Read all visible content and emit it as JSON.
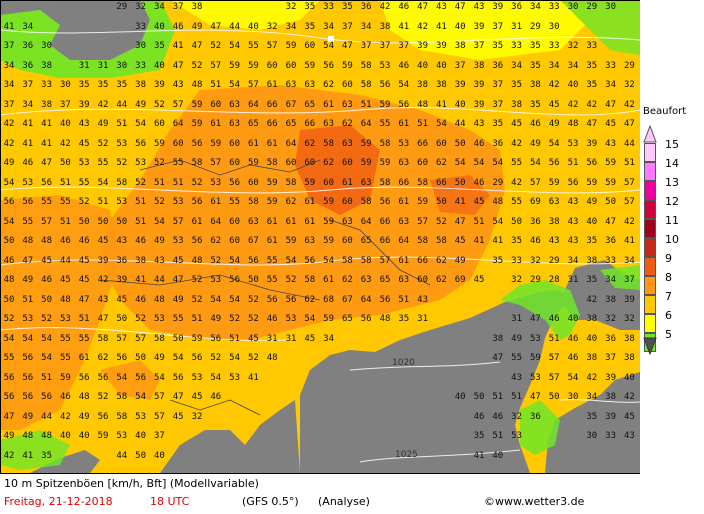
{
  "map": {
    "isobar_labels": [
      "1020",
      "1025"
    ],
    "land_color": "#808080",
    "grid_values": [
      [
        null,
        null,
        null,
        null,
        null,
        null,
        "29",
        "32",
        "34",
        "37",
        "38",
        null,
        null,
        null,
        null,
        "32",
        "35",
        "33",
        "35",
        "36",
        "42",
        "46",
        "47",
        "43",
        "47",
        "43",
        "39",
        "36",
        "34",
        "33",
        "30",
        "29",
        "30",
        null
      ],
      [
        "41",
        "34",
        null,
        null,
        null,
        null,
        null,
        "33",
        "40",
        "46",
        "49",
        "47",
        "44",
        "40",
        "32",
        "34",
        "35",
        "34",
        "37",
        "34",
        "38",
        "41",
        "42",
        "41",
        "40",
        "39",
        "37",
        "31",
        "29",
        "30",
        null,
        null,
        null,
        null
      ],
      [
        "37",
        "36",
        "30",
        null,
        null,
        null,
        null,
        "30",
        "35",
        "41",
        "47",
        "52",
        "54",
        "55",
        "57",
        "59",
        "60",
        "54",
        "47",
        "37",
        "37",
        "37",
        "39",
        "39",
        "38",
        "37",
        "35",
        "33",
        "35",
        "33",
        "32",
        "33",
        null,
        null
      ],
      [
        "34",
        "36",
        "38",
        null,
        "31",
        "31",
        "30",
        "33",
        "40",
        "47",
        "52",
        "57",
        "59",
        "59",
        "60",
        "60",
        "59",
        "56",
        "59",
        "58",
        "53",
        "46",
        "40",
        "40",
        "37",
        "38",
        "36",
        "34",
        "35",
        "34",
        "34",
        "35",
        "33",
        "29"
      ],
      [
        "34",
        "37",
        "33",
        "30",
        "35",
        "35",
        "35",
        "38",
        "39",
        "43",
        "48",
        "51",
        "54",
        "57",
        "61",
        "63",
        "63",
        "62",
        "60",
        "58",
        "56",
        "54",
        "38",
        "38",
        "39",
        "39",
        "37",
        "35",
        "38",
        "42",
        "40",
        "35",
        "34",
        "32"
      ],
      [
        "37",
        "34",
        "38",
        "37",
        "39",
        "42",
        "44",
        "49",
        "52",
        "57",
        "59",
        "60",
        "63",
        "64",
        "66",
        "67",
        "65",
        "61",
        "63",
        "51",
        "59",
        "56",
        "48",
        "41",
        "40",
        "39",
        "37",
        "38",
        "35",
        "45",
        "42",
        "42",
        "47",
        "42"
      ],
      [
        "42",
        "41",
        "41",
        "40",
        "43",
        "49",
        "51",
        "54",
        "60",
        "64",
        "59",
        "61",
        "63",
        "65",
        "66",
        "65",
        "66",
        "63",
        "62",
        "64",
        "55",
        "61",
        "51",
        "54",
        "44",
        "43",
        "35",
        "45",
        "46",
        "49",
        "48",
        "47",
        "45",
        "47"
      ],
      [
        "42",
        "41",
        "41",
        "42",
        "45",
        "52",
        "53",
        "56",
        "59",
        "60",
        "56",
        "59",
        "60",
        "61",
        "61",
        "64",
        "62",
        "58",
        "63",
        "59",
        "58",
        "53",
        "66",
        "60",
        "50",
        "46",
        "36",
        "42",
        "49",
        "54",
        "53",
        "39",
        "43",
        "44"
      ],
      [
        "49",
        "46",
        "47",
        "50",
        "53",
        "55",
        "52",
        "53",
        "52",
        "55",
        "58",
        "57",
        "60",
        "59",
        "58",
        "60",
        "60",
        "62",
        "60",
        "59",
        "59",
        "63",
        "60",
        "62",
        "54",
        "54",
        "54",
        "55",
        "54",
        "56",
        "51",
        "56",
        "59",
        "51"
      ],
      [
        "54",
        "53",
        "56",
        "51",
        "55",
        "54",
        "58",
        "52",
        "51",
        "51",
        "52",
        "53",
        "56",
        "60",
        "59",
        "58",
        "59",
        "60",
        "61",
        "63",
        "58",
        "66",
        "58",
        "66",
        "50",
        "46",
        "29",
        "42",
        "57",
        "59",
        "56",
        "59",
        "59",
        "57"
      ],
      [
        "56",
        "56",
        "55",
        "55",
        "52",
        "51",
        "53",
        "51",
        "52",
        "53",
        "56",
        "61",
        "55",
        "58",
        "59",
        "62",
        "61",
        "59",
        "60",
        "58",
        "56",
        "61",
        "59",
        "50",
        "41",
        "45",
        "48",
        "55",
        "69",
        "63",
        "43",
        "49",
        "50",
        "57"
      ],
      [
        "54",
        "55",
        "57",
        "51",
        "50",
        "50",
        "50",
        "51",
        "54",
        "57",
        "61",
        "64",
        "60",
        "63",
        "61",
        "61",
        "61",
        "59",
        "63",
        "64",
        "66",
        "63",
        "57",
        "52",
        "47",
        "51",
        "54",
        "50",
        "36",
        "38",
        "43",
        "40",
        "47",
        "42"
      ],
      [
        "50",
        "48",
        "48",
        "46",
        "46",
        "45",
        "43",
        "46",
        "49",
        "53",
        "56",
        "62",
        "60",
        "67",
        "61",
        "59",
        "63",
        "59",
        "60",
        "65",
        "66",
        "64",
        "58",
        "58",
        "45",
        "41",
        "41",
        "35",
        "46",
        "43",
        "43",
        "35",
        "36",
        "41"
      ],
      [
        "46",
        "47",
        "45",
        "44",
        "45",
        "39",
        "36",
        "38",
        "43",
        "45",
        "48",
        "52",
        "54",
        "56",
        "55",
        "54",
        "56",
        "54",
        "58",
        "58",
        "57",
        "61",
        "66",
        "62",
        "49",
        null,
        "35",
        "33",
        "32",
        "29",
        "34",
        "38",
        "33",
        "34"
      ],
      [
        "48",
        "49",
        "46",
        "45",
        "45",
        "42",
        "39",
        "41",
        "44",
        "47",
        "52",
        "53",
        "56",
        "50",
        "55",
        "52",
        "58",
        "61",
        "62",
        "63",
        "65",
        "63",
        "60",
        "62",
        "69",
        "45",
        null,
        "32",
        "29",
        "28",
        "31",
        "35",
        "34",
        "37"
      ],
      [
        "50",
        "51",
        "50",
        "48",
        "47",
        "43",
        "45",
        "46",
        "48",
        "49",
        "52",
        "54",
        "54",
        "52",
        "56",
        "56",
        "62",
        "68",
        "67",
        "64",
        "56",
        "51",
        "43",
        null,
        null,
        null,
        null,
        null,
        null,
        null,
        null,
        "42",
        "38",
        "39"
      ],
      [
        "52",
        "53",
        "52",
        "53",
        "51",
        "47",
        "50",
        "52",
        "53",
        "55",
        "51",
        "49",
        "52",
        "52",
        "46",
        "53",
        "54",
        "59",
        "65",
        "56",
        "48",
        "35",
        "31",
        null,
        null,
        null,
        null,
        "31",
        "47",
        "46",
        "40",
        "38",
        "32",
        "32"
      ],
      [
        "54",
        "54",
        "54",
        "55",
        "55",
        "58",
        "57",
        "57",
        "58",
        "50",
        "59",
        "56",
        "51",
        "45",
        "31",
        "31",
        "45",
        "34",
        null,
        null,
        null,
        null,
        null,
        null,
        null,
        null,
        "38",
        "49",
        "53",
        "51",
        "46",
        "40",
        "36",
        "38"
      ],
      [
        "55",
        "56",
        "54",
        "55",
        "61",
        "62",
        "56",
        "50",
        "49",
        "54",
        "56",
        "52",
        "54",
        "52",
        "48",
        null,
        null,
        null,
        null,
        null,
        null,
        null,
        null,
        null,
        null,
        null,
        "47",
        "55",
        "59",
        "57",
        "46",
        "38",
        "37",
        "38"
      ],
      [
        "56",
        "56",
        "51",
        "59",
        "56",
        "56",
        "54",
        "56",
        "54",
        "56",
        "53",
        "54",
        "53",
        "41",
        null,
        null,
        null,
        null,
        null,
        null,
        null,
        null,
        null,
        null,
        null,
        null,
        null,
        "43",
        "53",
        "57",
        "54",
        "42",
        "39",
        "40"
      ],
      [
        "56",
        "56",
        "56",
        "46",
        "48",
        "52",
        "58",
        "54",
        "57",
        "47",
        "45",
        "46",
        null,
        null,
        null,
        null,
        null,
        null,
        null,
        null,
        null,
        null,
        null,
        null,
        "40",
        "50",
        "51",
        "51",
        "47",
        "50",
        "30",
        "34",
        "38",
        "42"
      ],
      [
        "47",
        "49",
        "44",
        "42",
        "49",
        "56",
        "58",
        "53",
        "57",
        "45",
        "32",
        null,
        null,
        null,
        null,
        null,
        null,
        null,
        null,
        null,
        null,
        null,
        null,
        null,
        null,
        "46",
        "46",
        "32",
        "36",
        null,
        null,
        "35",
        "39",
        "45"
      ],
      [
        "49",
        "48",
        "48",
        "40",
        "40",
        "59",
        "53",
        "40",
        "37",
        null,
        null,
        null,
        null,
        null,
        null,
        null,
        null,
        null,
        null,
        null,
        null,
        null,
        null,
        null,
        null,
        "35",
        "51",
        "53",
        null,
        null,
        null,
        "30",
        "33",
        "43"
      ],
      [
        "42",
        "41",
        "35",
        null,
        null,
        null,
        "44",
        "50",
        "40",
        null,
        null,
        null,
        null,
        null,
        null,
        null,
        null,
        null,
        null,
        null,
        null,
        null,
        null,
        null,
        null,
        "41",
        "40",
        null,
        null,
        null,
        null,
        null,
        null,
        null
      ]
    ]
  },
  "legend": {
    "title": "Beaufort",
    "scale": [
      {
        "label": "15",
        "color": "#ffc8ff"
      },
      {
        "label": "14",
        "color": "#ff78ff"
      },
      {
        "label": "13",
        "color": "#f000a0"
      },
      {
        "label": "12",
        "color": "#d2003c"
      },
      {
        "label": "11",
        "color": "#a0001e"
      },
      {
        "label": "10",
        "color": "#c8281e"
      },
      {
        "label": "9",
        "color": "#f05a14"
      },
      {
        "label": "8",
        "color": "#ff9614"
      },
      {
        "label": "7",
        "color": "#ffc800"
      },
      {
        "label": "6",
        "color": "#ffff00"
      },
      {
        "label": "5",
        "color": "#6ee628"
      }
    ]
  },
  "footer": {
    "title": "10 m Spitzenböen [km/h, Bft] (Modellvariable)",
    "date": "Freitag, 21-12-2018",
    "time": "18 UTC",
    "model": "(GFS 0.5°)",
    "run": "(Analyse)",
    "credit": "©www.wetter3.de"
  }
}
